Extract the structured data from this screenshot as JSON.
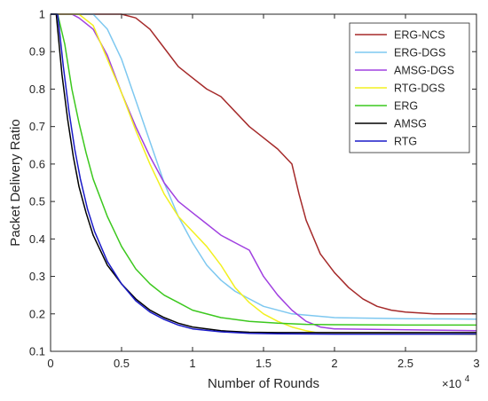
{
  "chart_data": {
    "type": "line",
    "xlabel": "Number of Rounds",
    "ylabel": "Packet Delivery Ratio",
    "x_multiplier_label": "×10",
    "x_multiplier_exponent": "4",
    "xlim": [
      0,
      30000
    ],
    "ylim": [
      0.1,
      1
    ],
    "grid": false,
    "legend_position": "top-right",
    "x_ticks": [
      0,
      5000,
      10000,
      15000,
      20000,
      25000,
      30000
    ],
    "x_tick_labels": [
      "0",
      "0.5",
      "1",
      "1.5",
      "2",
      "2.5",
      "3"
    ],
    "y_ticks": [
      0.1,
      0.2,
      0.3,
      0.4,
      0.5,
      0.6,
      0.7,
      0.8,
      0.9,
      1
    ],
    "y_tick_labels": [
      "0.1",
      "0.2",
      "0.3",
      "0.4",
      "0.5",
      "0.6",
      "0.7",
      "0.8",
      "0.9",
      "1"
    ],
    "series": [
      {
        "name": "ERG-NCS",
        "color": "#a52a2a",
        "x": [
          0,
          5000,
          6000,
          7000,
          8000,
          9000,
          10000,
          11000,
          12000,
          13000,
          14000,
          15000,
          16000,
          17000,
          17500,
          18000,
          19000,
          20000,
          21000,
          22000,
          23000,
          24000,
          25000,
          27000,
          30000
        ],
        "y": [
          1,
          1,
          0.99,
          0.96,
          0.91,
          0.86,
          0.83,
          0.8,
          0.78,
          0.74,
          0.7,
          0.67,
          0.64,
          0.6,
          0.52,
          0.45,
          0.36,
          0.31,
          0.27,
          0.24,
          0.22,
          0.21,
          0.205,
          0.2,
          0.2
        ]
      },
      {
        "name": "ERG-DGS",
        "color": "#7ec8f0",
        "x": [
          0,
          3000,
          4000,
          5000,
          6000,
          7000,
          8000,
          9000,
          10000,
          11000,
          12000,
          13000,
          14000,
          15000,
          17000,
          20000,
          25000,
          30000
        ],
        "y": [
          1,
          1,
          0.96,
          0.88,
          0.77,
          0.66,
          0.55,
          0.46,
          0.39,
          0.33,
          0.29,
          0.26,
          0.24,
          0.22,
          0.2,
          0.19,
          0.187,
          0.186
        ]
      },
      {
        "name": "AMSG-DGS",
        "color": "#a040e0",
        "x": [
          0,
          1500,
          2000,
          3000,
          4000,
          5000,
          6000,
          7000,
          8000,
          9000,
          10000,
          11000,
          12000,
          13000,
          14000,
          15000,
          16000,
          17000,
          18000,
          19000,
          20000,
          30000
        ],
        "y": [
          1,
          1,
          0.99,
          0.96,
          0.89,
          0.79,
          0.7,
          0.62,
          0.55,
          0.5,
          0.47,
          0.44,
          0.41,
          0.39,
          0.37,
          0.3,
          0.25,
          0.21,
          0.18,
          0.165,
          0.16,
          0.155
        ]
      },
      {
        "name": "RTG-DGS",
        "color": "#f2f020",
        "x": [
          0,
          2000,
          3000,
          4000,
          5000,
          6000,
          7000,
          8000,
          9000,
          10000,
          11000,
          12000,
          13000,
          14000,
          15000,
          16000,
          17000,
          18000,
          19000,
          30000
        ],
        "y": [
          1,
          1,
          0.97,
          0.88,
          0.79,
          0.69,
          0.6,
          0.52,
          0.46,
          0.42,
          0.38,
          0.33,
          0.27,
          0.23,
          0.2,
          0.18,
          0.165,
          0.155,
          0.148,
          0.145
        ]
      },
      {
        "name": "ERG",
        "color": "#3cc81e",
        "x": [
          0,
          500,
          1000,
          1500,
          2000,
          2500,
          3000,
          4000,
          5000,
          6000,
          7000,
          8000,
          9000,
          10000,
          12000,
          14000,
          16000,
          18000,
          20000,
          25000,
          30000
        ],
        "y": [
          1,
          1,
          0.92,
          0.8,
          0.71,
          0.63,
          0.56,
          0.46,
          0.38,
          0.32,
          0.28,
          0.25,
          0.23,
          0.21,
          0.19,
          0.18,
          0.175,
          0.172,
          0.171,
          0.17,
          0.17
        ]
      },
      {
        "name": "AMSG",
        "color": "#000000",
        "x": [
          0,
          400,
          800,
          1200,
          1600,
          2000,
          2500,
          3000,
          4000,
          5000,
          6000,
          7000,
          8000,
          9000,
          10000,
          12000,
          14000,
          16000,
          20000,
          30000
        ],
        "y": [
          1,
          1,
          0.84,
          0.72,
          0.62,
          0.54,
          0.47,
          0.41,
          0.33,
          0.28,
          0.24,
          0.21,
          0.19,
          0.175,
          0.165,
          0.155,
          0.151,
          0.15,
          0.15,
          0.15
        ]
      },
      {
        "name": "RTG",
        "color": "#1a1ac8",
        "x": [
          0,
          500,
          900,
          1300,
          1700,
          2100,
          2600,
          3100,
          4000,
          5000,
          6000,
          7000,
          8000,
          9000,
          10000,
          12000,
          14000,
          16000,
          20000,
          30000
        ],
        "y": [
          1,
          1,
          0.86,
          0.74,
          0.64,
          0.56,
          0.48,
          0.42,
          0.34,
          0.28,
          0.235,
          0.205,
          0.185,
          0.17,
          0.16,
          0.152,
          0.148,
          0.147,
          0.146,
          0.146
        ]
      }
    ]
  }
}
